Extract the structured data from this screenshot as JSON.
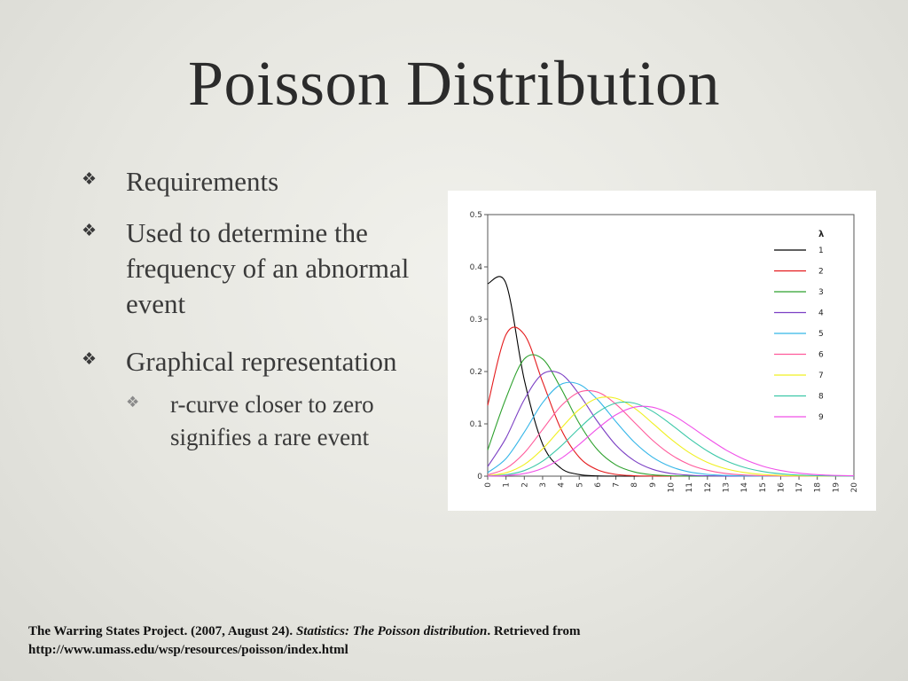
{
  "slide": {
    "title": "Poisson Distribution",
    "bullets": [
      {
        "text": "Requirements"
      },
      {
        "text": "Used to determine the frequency of an abnormal event"
      },
      {
        "text": "Graphical representation",
        "sub": [
          {
            "text": "r-curve closer to zero signifies a rare event"
          }
        ]
      }
    ],
    "bullet_icon": "diamond-four-icon",
    "citation": {
      "part1": "The Warring States Project. (2007, August 24).",
      "title": "Statistics: The Poisson distribution",
      "part2": ". Retrieved from",
      "url": "http://www.umass.edu/wsp/resources/poisson/index.html"
    }
  },
  "chart_data": {
    "type": "line",
    "title": "",
    "xlabel": "",
    "ylabel": "",
    "xlim": [
      0,
      20
    ],
    "ylim": [
      0,
      0.5
    ],
    "x_ticks": [
      "0",
      "1",
      "2",
      "3",
      "4",
      "5",
      "6",
      "7",
      "8",
      "9",
      "10",
      "11",
      "12",
      "13",
      "14",
      "15",
      "16",
      "17",
      "18",
      "19",
      "20"
    ],
    "y_ticks": [
      "0",
      "0.1",
      "0.2",
      "0.3",
      "0.4",
      "0.5"
    ],
    "grid": false,
    "legend_title": "λ",
    "legend_position": "top-right",
    "x": [
      0,
      1,
      2,
      3,
      4,
      5,
      6,
      7,
      8,
      9,
      10,
      11,
      12,
      13,
      14,
      15,
      16,
      17,
      18,
      19,
      20
    ],
    "series": [
      {
        "name": "1",
        "color": "#000000",
        "values": [
          0.3679,
          0.3679,
          0.1839,
          0.0613,
          0.0153,
          0.0031,
          0.0005,
          0.0001,
          0,
          0,
          0,
          0,
          0,
          0,
          0,
          0,
          0,
          0,
          0,
          0,
          0
        ]
      },
      {
        "name": "2",
        "color": "#e41a1c",
        "values": [
          0.1353,
          0.2707,
          0.2707,
          0.1804,
          0.0902,
          0.0361,
          0.012,
          0.0034,
          0.0009,
          0.0002,
          0,
          0,
          0,
          0,
          0,
          0,
          0,
          0,
          0,
          0,
          0
        ]
      },
      {
        "name": "3",
        "color": "#2ca02c",
        "values": [
          0.0498,
          0.1494,
          0.224,
          0.224,
          0.168,
          0.1008,
          0.0504,
          0.0216,
          0.0081,
          0.0027,
          0.0008,
          0.0002,
          0.0001,
          0,
          0,
          0,
          0,
          0,
          0,
          0,
          0
        ]
      },
      {
        "name": "4",
        "color": "#7b3fc4",
        "values": [
          0.0183,
          0.0733,
          0.1465,
          0.1954,
          0.1954,
          0.1563,
          0.1042,
          0.0595,
          0.0298,
          0.0132,
          0.0053,
          0.0019,
          0.0006,
          0.0002,
          0.0001,
          0,
          0,
          0,
          0,
          0,
          0
        ]
      },
      {
        "name": "5",
        "color": "#35b6e8",
        "values": [
          0.0067,
          0.0337,
          0.0842,
          0.1404,
          0.1755,
          0.1755,
          0.1462,
          0.1044,
          0.0653,
          0.0363,
          0.0181,
          0.0082,
          0.0034,
          0.0013,
          0.0005,
          0.0002,
          0,
          0,
          0,
          0,
          0
        ]
      },
      {
        "name": "6",
        "color": "#ff5a9b",
        "values": [
          0.0025,
          0.0149,
          0.0446,
          0.0892,
          0.1339,
          0.1606,
          0.1606,
          0.1377,
          0.1033,
          0.0688,
          0.0413,
          0.0225,
          0.0113,
          0.0052,
          0.0022,
          0.0009,
          0.0003,
          0.0001,
          0,
          0,
          0
        ]
      },
      {
        "name": "7",
        "color": "#f0f020",
        "values": [
          0.0009,
          0.0064,
          0.0223,
          0.0521,
          0.0912,
          0.1277,
          0.149,
          0.149,
          0.1304,
          0.1014,
          0.071,
          0.0452,
          0.0263,
          0.0142,
          0.0071,
          0.0033,
          0.0014,
          0.0006,
          0.0002,
          0.0001,
          0
        ]
      },
      {
        "name": "8",
        "color": "#3cc8a8",
        "values": [
          0.0003,
          0.0027,
          0.0107,
          0.0286,
          0.0573,
          0.0916,
          0.1221,
          0.1396,
          0.1396,
          0.1241,
          0.0993,
          0.0722,
          0.0481,
          0.0296,
          0.0169,
          0.009,
          0.0045,
          0.0021,
          0.0009,
          0.0004,
          0.0002
        ]
      },
      {
        "name": "9",
        "color": "#f050e8",
        "values": [
          0.0001,
          0.0011,
          0.005,
          0.015,
          0.0337,
          0.0607,
          0.0911,
          0.1171,
          0.1318,
          0.1318,
          0.1186,
          0.097,
          0.0728,
          0.0504,
          0.0324,
          0.0194,
          0.0109,
          0.0058,
          0.0029,
          0.0014,
          0.0006
        ]
      }
    ]
  }
}
